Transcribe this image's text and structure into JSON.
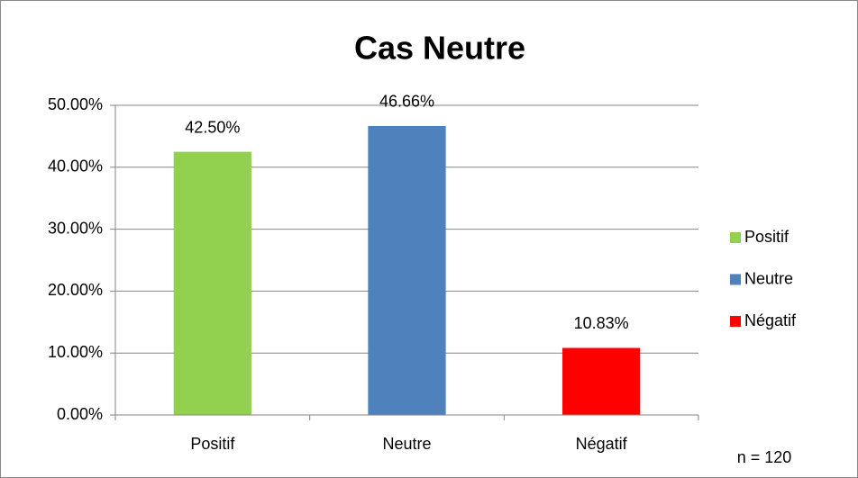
{
  "chart_data": {
    "type": "bar",
    "title": "Cas Neutre",
    "categories": [
      "Positif",
      "Neutre",
      "Négatif"
    ],
    "values": [
      42.5,
      46.66,
      10.83
    ],
    "value_labels": [
      "42.50%",
      "46.66%",
      "10.83%"
    ],
    "colors": [
      "#92d050",
      "#4f81bd",
      "#ff0000"
    ],
    "ylim": [
      0,
      50
    ],
    "yticks": [
      {
        "value": 0,
        "label": "0.00%"
      },
      {
        "value": 10,
        "label": "10.00%"
      },
      {
        "value": 20,
        "label": "20.00%"
      },
      {
        "value": 30,
        "label": "30.00%"
      },
      {
        "value": 40,
        "label": "40.00%"
      },
      {
        "value": 50,
        "label": "50.00%"
      }
    ],
    "grid": true,
    "legend": "right",
    "annotation": "n = 120"
  }
}
